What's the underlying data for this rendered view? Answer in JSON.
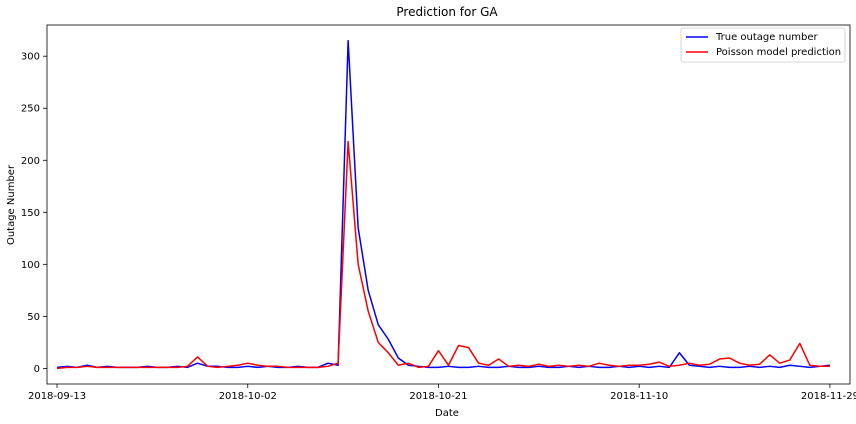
{
  "chart_data": {
    "type": "line",
    "title": "Prediction for GA",
    "xlabel": "Date",
    "ylabel": "Outage Number",
    "xlim": [
      "2018-09-12",
      "2018-12-01"
    ],
    "ylim": [
      -15,
      330
    ],
    "x_ticks": [
      "2018-09-13",
      "2018-10-02",
      "2018-10-21",
      "2018-11-10",
      "2018-11-29"
    ],
    "y_ticks": [
      0,
      50,
      100,
      150,
      200,
      250,
      300
    ],
    "grid": false,
    "legend": "top-right",
    "series": [
      {
        "name": "True outage number",
        "color": "#0000ff",
        "points": [
          [
            "2018-09-13",
            1
          ],
          [
            "2018-09-14",
            2
          ],
          [
            "2018-09-15",
            1
          ],
          [
            "2018-09-16",
            3
          ],
          [
            "2018-09-17",
            1
          ],
          [
            "2018-09-18",
            2
          ],
          [
            "2018-09-19",
            1
          ],
          [
            "2018-09-20",
            1
          ],
          [
            "2018-09-21",
            1
          ],
          [
            "2018-09-22",
            2
          ],
          [
            "2018-09-23",
            1
          ],
          [
            "2018-09-24",
            1
          ],
          [
            "2018-09-25",
            2
          ],
          [
            "2018-09-26",
            1
          ],
          [
            "2018-09-27",
            5
          ],
          [
            "2018-09-28",
            2
          ],
          [
            "2018-09-29",
            2
          ],
          [
            "2018-09-30",
            1
          ],
          [
            "2018-10-01",
            1
          ],
          [
            "2018-10-02",
            2
          ],
          [
            "2018-10-03",
            1
          ],
          [
            "2018-10-04",
            2
          ],
          [
            "2018-10-05",
            1
          ],
          [
            "2018-10-06",
            1
          ],
          [
            "2018-10-07",
            2
          ],
          [
            "2018-10-08",
            1
          ],
          [
            "2018-10-09",
            1
          ],
          [
            "2018-10-10",
            5
          ],
          [
            "2018-10-11",
            3
          ],
          [
            "2018-10-12",
            315
          ],
          [
            "2018-10-13",
            135
          ],
          [
            "2018-10-14",
            75
          ],
          [
            "2018-10-15",
            42
          ],
          [
            "2018-10-16",
            28
          ],
          [
            "2018-10-17",
            10
          ],
          [
            "2018-10-18",
            3
          ],
          [
            "2018-10-19",
            2
          ],
          [
            "2018-10-20",
            1
          ],
          [
            "2018-10-21",
            1
          ],
          [
            "2018-10-22",
            2
          ],
          [
            "2018-10-23",
            1
          ],
          [
            "2018-10-24",
            1
          ],
          [
            "2018-10-25",
            2
          ],
          [
            "2018-10-26",
            1
          ],
          [
            "2018-10-27",
            1
          ],
          [
            "2018-10-28",
            2
          ],
          [
            "2018-10-29",
            1
          ],
          [
            "2018-10-30",
            1
          ],
          [
            "2018-10-31",
            2
          ],
          [
            "2018-11-01",
            1
          ],
          [
            "2018-11-02",
            1
          ],
          [
            "2018-11-03",
            2
          ],
          [
            "2018-11-04",
            1
          ],
          [
            "2018-11-05",
            2
          ],
          [
            "2018-11-06",
            1
          ],
          [
            "2018-11-07",
            1
          ],
          [
            "2018-11-08",
            2
          ],
          [
            "2018-11-09",
            1
          ],
          [
            "2018-11-10",
            2
          ],
          [
            "2018-11-11",
            1
          ],
          [
            "2018-11-12",
            2
          ],
          [
            "2018-11-13",
            1
          ],
          [
            "2018-11-14",
            15
          ],
          [
            "2018-11-15",
            3
          ],
          [
            "2018-11-16",
            2
          ],
          [
            "2018-11-17",
            1
          ],
          [
            "2018-11-18",
            2
          ],
          [
            "2018-11-19",
            1
          ],
          [
            "2018-11-20",
            1
          ],
          [
            "2018-11-21",
            2
          ],
          [
            "2018-11-22",
            1
          ],
          [
            "2018-11-23",
            2
          ],
          [
            "2018-11-24",
            1
          ],
          [
            "2018-11-25",
            3
          ],
          [
            "2018-11-26",
            2
          ],
          [
            "2018-11-27",
            1
          ],
          [
            "2018-11-28",
            2
          ],
          [
            "2018-11-29",
            3
          ]
        ]
      },
      {
        "name": "Poisson model prediction",
        "color": "#ff0000",
        "points": [
          [
            "2018-09-13",
            0
          ],
          [
            "2018-09-14",
            1
          ],
          [
            "2018-09-15",
            1
          ],
          [
            "2018-09-16",
            2
          ],
          [
            "2018-09-17",
            1
          ],
          [
            "2018-09-18",
            1
          ],
          [
            "2018-09-19",
            1
          ],
          [
            "2018-09-20",
            1
          ],
          [
            "2018-09-21",
            1
          ],
          [
            "2018-09-22",
            1
          ],
          [
            "2018-09-23",
            1
          ],
          [
            "2018-09-24",
            1
          ],
          [
            "2018-09-25",
            1
          ],
          [
            "2018-09-26",
            2
          ],
          [
            "2018-09-27",
            11
          ],
          [
            "2018-09-28",
            2
          ],
          [
            "2018-09-29",
            1
          ],
          [
            "2018-09-30",
            2
          ],
          [
            "2018-10-01",
            3
          ],
          [
            "2018-10-02",
            5
          ],
          [
            "2018-10-03",
            3
          ],
          [
            "2018-10-04",
            2
          ],
          [
            "2018-10-05",
            2
          ],
          [
            "2018-10-06",
            1
          ],
          [
            "2018-10-07",
            1
          ],
          [
            "2018-10-08",
            1
          ],
          [
            "2018-10-09",
            1
          ],
          [
            "2018-10-10",
            2
          ],
          [
            "2018-10-11",
            5
          ],
          [
            "2018-10-12",
            218
          ],
          [
            "2018-10-13",
            100
          ],
          [
            "2018-10-14",
            55
          ],
          [
            "2018-10-15",
            25
          ],
          [
            "2018-10-16",
            15
          ],
          [
            "2018-10-17",
            3
          ],
          [
            "2018-10-18",
            5
          ],
          [
            "2018-10-19",
            1
          ],
          [
            "2018-10-20",
            2
          ],
          [
            "2018-10-21",
            17
          ],
          [
            "2018-10-22",
            3
          ],
          [
            "2018-10-23",
            22
          ],
          [
            "2018-10-24",
            20
          ],
          [
            "2018-10-25",
            5
          ],
          [
            "2018-10-26",
            3
          ],
          [
            "2018-10-27",
            9
          ],
          [
            "2018-10-28",
            2
          ],
          [
            "2018-10-29",
            3
          ],
          [
            "2018-10-30",
            2
          ],
          [
            "2018-10-31",
            4
          ],
          [
            "2018-11-01",
            2
          ],
          [
            "2018-11-02",
            3
          ],
          [
            "2018-11-03",
            2
          ],
          [
            "2018-11-04",
            3
          ],
          [
            "2018-11-05",
            2
          ],
          [
            "2018-11-06",
            5
          ],
          [
            "2018-11-07",
            3
          ],
          [
            "2018-11-08",
            2
          ],
          [
            "2018-11-09",
            3
          ],
          [
            "2018-11-10",
            3
          ],
          [
            "2018-11-11",
            4
          ],
          [
            "2018-11-12",
            6
          ],
          [
            "2018-11-13",
            2
          ],
          [
            "2018-11-14",
            3
          ],
          [
            "2018-11-15",
            5
          ],
          [
            "2018-11-16",
            3
          ],
          [
            "2018-11-17",
            4
          ],
          [
            "2018-11-18",
            9
          ],
          [
            "2018-11-19",
            10
          ],
          [
            "2018-11-20",
            5
          ],
          [
            "2018-11-21",
            3
          ],
          [
            "2018-11-22",
            4
          ],
          [
            "2018-11-23",
            13
          ],
          [
            "2018-11-24",
            5
          ],
          [
            "2018-11-25",
            8
          ],
          [
            "2018-11-26",
            24
          ],
          [
            "2018-11-27",
            3
          ],
          [
            "2018-11-28",
            2
          ],
          [
            "2018-11-29",
            2
          ]
        ]
      }
    ]
  }
}
